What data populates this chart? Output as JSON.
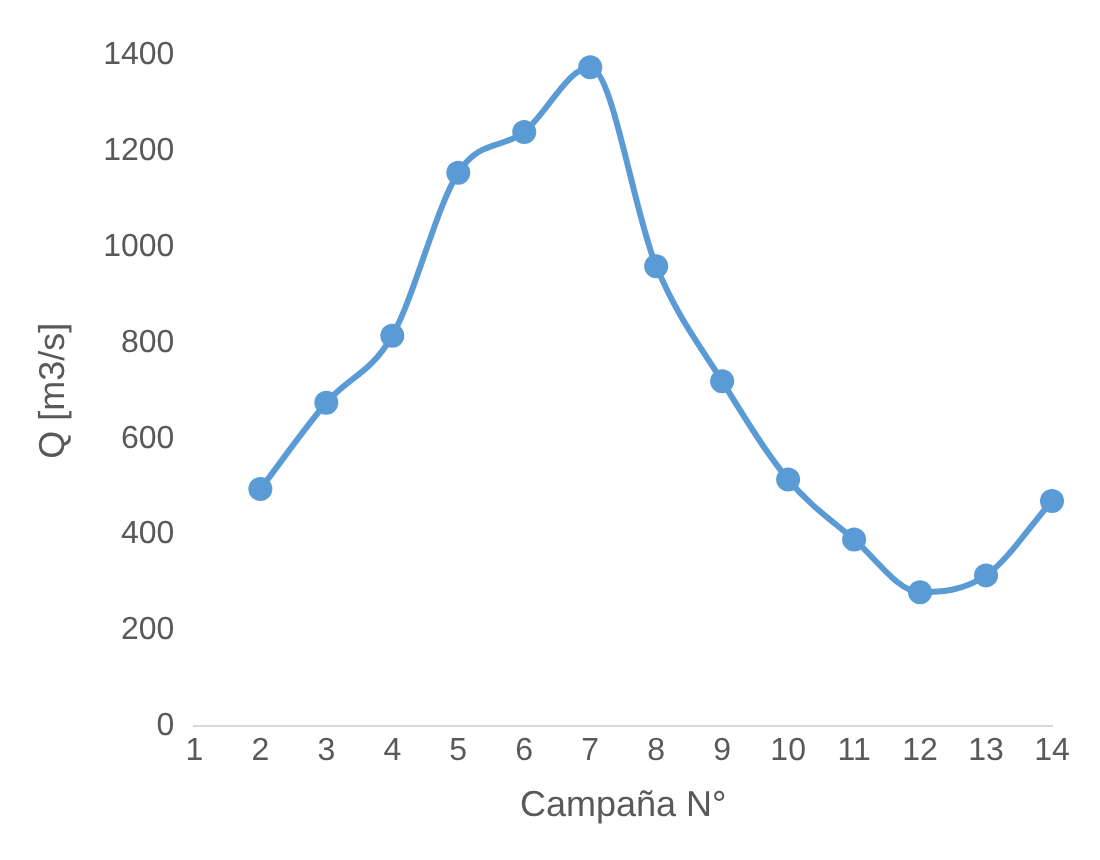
{
  "chart_data": {
    "type": "line",
    "xlabel": "Campaña N°",
    "ylabel": "Q [m3/s]",
    "x": [
      2,
      3,
      4,
      5,
      6,
      7,
      8,
      9,
      10,
      11,
      12,
      13,
      14
    ],
    "series": [
      {
        "color": "#5b9bd5",
        "values": [
          495,
          675,
          815,
          1155,
          1240,
          1375,
          960,
          720,
          515,
          390,
          280,
          315,
          470
        ]
      }
    ],
    "xlim": [
      1,
      14
    ],
    "xticks": [
      1,
      2,
      3,
      4,
      5,
      6,
      7,
      8,
      9,
      10,
      11,
      12,
      13,
      14
    ],
    "ylim": [
      0,
      1400
    ],
    "yticks": [
      0,
      200,
      400,
      600,
      800,
      1000,
      1200,
      1400
    ],
    "grid": false,
    "legend": false,
    "marker": "circle",
    "line_style": "solid"
  }
}
